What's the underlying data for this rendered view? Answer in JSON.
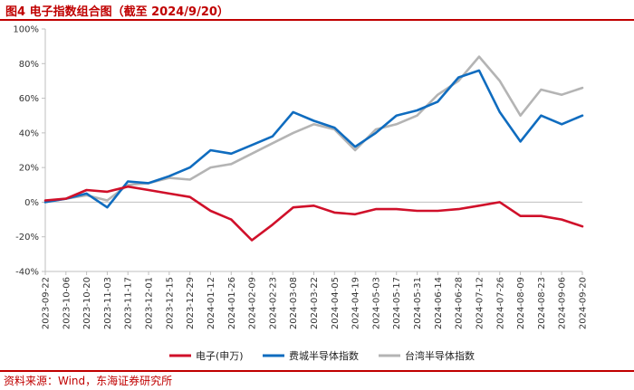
{
  "header": {
    "title": "图4  电子指数组合图（截至 2024/9/20）"
  },
  "footer": {
    "source": "资料来源：Wind，东海证券研究所"
  },
  "colors": {
    "accent": "#c00000",
    "series_red": "#d0102a",
    "series_blue": "#0f6cbf",
    "series_gray": "#b4b4b4",
    "axis": "#bfbfbf"
  },
  "chart_data": {
    "type": "line",
    "title": "电子指数组合图（截至 2024/9/20）",
    "xlabel": "",
    "ylabel": "",
    "ylim": [
      -40,
      100
    ],
    "y_ticks": [
      -40,
      -20,
      0,
      20,
      40,
      60,
      80,
      100
    ],
    "y_tick_labels": [
      "-40%",
      "-20%",
      "0%",
      "20%",
      "40%",
      "60%",
      "80%",
      "100%"
    ],
    "x": [
      "2023-09-22",
      "2023-10-06",
      "2023-10-20",
      "2023-11-03",
      "2023-11-17",
      "2023-12-01",
      "2023-12-15",
      "2023-12-29",
      "2024-01-12",
      "2024-01-26",
      "2024-02-09",
      "2024-02-23",
      "2024-03-08",
      "2024-03-22",
      "2024-04-05",
      "2024-04-19",
      "2024-05-03",
      "2024-05-17",
      "2024-05-31",
      "2024-06-14",
      "2024-06-28",
      "2024-07-12",
      "2024-07-26",
      "2024-08-09",
      "2024-08-23",
      "2024-09-06",
      "2024-09-20"
    ],
    "legend_position": "bottom",
    "series": [
      {
        "name": "电子(申万)",
        "color": "#d0102a",
        "values": [
          1,
          2,
          7,
          6,
          9,
          7,
          5,
          3,
          -5,
          -10,
          -22,
          -13,
          -3,
          -2,
          -6,
          -7,
          -4,
          -4,
          -5,
          -5,
          -4,
          -2,
          0,
          -8,
          -8,
          -10,
          -14
        ]
      },
      {
        "name": "费城半导体指数",
        "color": "#0f6cbf",
        "values": [
          0,
          2,
          5,
          -3,
          12,
          11,
          15,
          20,
          30,
          28,
          33,
          38,
          52,
          47,
          43,
          32,
          40,
          50,
          53,
          58,
          72,
          76,
          52,
          35,
          50,
          45,
          50
        ]
      },
      {
        "name": "台湾半导体指数",
        "color": "#b4b4b4",
        "values": [
          0,
          2,
          4,
          1,
          10,
          11,
          14,
          13,
          20,
          22,
          28,
          34,
          40,
          45,
          42,
          30,
          42,
          45,
          50,
          62,
          70,
          84,
          70,
          50,
          65,
          62,
          66
        ]
      }
    ]
  }
}
